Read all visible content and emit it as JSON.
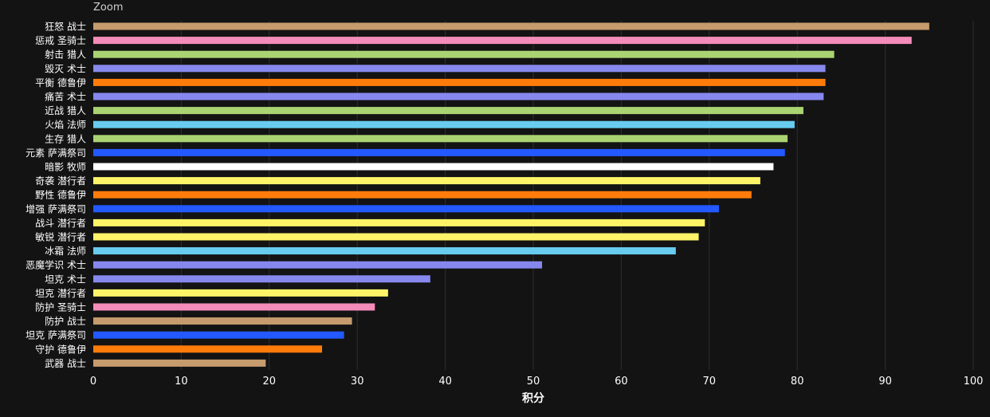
{
  "zoom_label": "Zoom",
  "colors": {
    "background": "#131313",
    "gridline": "#2e2e2e",
    "text": "#ffffff"
  },
  "chart_data": {
    "type": "bar",
    "orientation": "horizontal",
    "title": "",
    "xlabel": "积分",
    "ylabel": "",
    "xlim": [
      0,
      100
    ],
    "xticks": [
      0,
      10,
      20,
      30,
      40,
      50,
      60,
      70,
      80,
      90,
      100
    ],
    "grid": true,
    "categories": [
      "狂怒 战士",
      "惩戒 圣骑士",
      "射击 猎人",
      "毁灭 术士",
      "平衡 德鲁伊",
      "痛苦 术士",
      "近战 猎人",
      "火焰 法师",
      "生存 猎人",
      "元素 萨满祭司",
      "暗影 牧师",
      "奇袭 潜行者",
      "野性 德鲁伊",
      "增强 萨满祭司",
      "战斗 潜行者",
      "敏锐 潜行者",
      "冰霜 法师",
      "恶魔学识 术士",
      "坦克 术士",
      "坦克 潜行者",
      "防护 圣骑士",
      "防护 战士",
      "坦克 萨满祭司",
      "守护 德鲁伊",
      "武器 战士"
    ],
    "values": [
      95.0,
      93.0,
      84.2,
      83.2,
      83.2,
      83.0,
      80.7,
      79.7,
      78.9,
      78.6,
      77.3,
      75.8,
      74.8,
      71.1,
      69.5,
      68.8,
      66.2,
      51.0,
      38.3,
      33.5,
      32.0,
      29.4,
      28.5,
      26.0,
      19.6
    ],
    "bar_colors": [
      "#C69B6D",
      "#F48CBA",
      "#AAD372",
      "#8788EE",
      "#FF7C0A",
      "#8788EE",
      "#AAD372",
      "#68CCEF",
      "#AAD372",
      "#2359FF",
      "#FFFFFF",
      "#FFF468",
      "#FF7C0A",
      "#2359FF",
      "#FFF468",
      "#FFF468",
      "#68CCEF",
      "#8788EE",
      "#8788EE",
      "#FFF468",
      "#F48CBA",
      "#C69B6D",
      "#2359FF",
      "#FF7C0A",
      "#C69B6D"
    ]
  }
}
